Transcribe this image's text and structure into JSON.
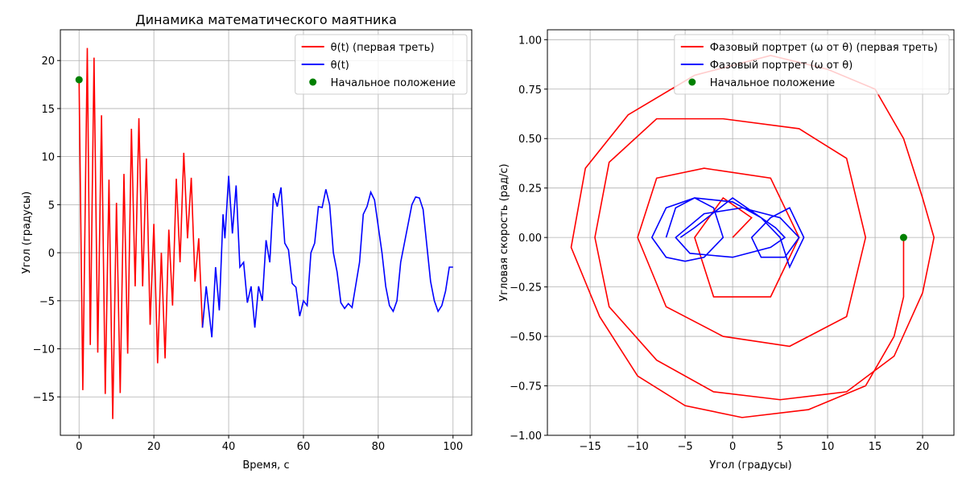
{
  "chart_data": [
    {
      "type": "line",
      "title": "Динамика математического маятника",
      "xlabel": "Время, с",
      "ylabel": "Угол (градусы)",
      "xlim": [
        -5,
        105
      ],
      "xticks": [
        0,
        20,
        40,
        60,
        80,
        100
      ],
      "ylim": [
        -19,
        23.2
      ],
      "yticks": [
        {
          "value": -15,
          "label": "−15"
        },
        {
          "value": -10,
          "label": "−10"
        },
        {
          "value": -5,
          "label": "−5"
        },
        0,
        5,
        10,
        15,
        20
      ],
      "grid": true,
      "legend": "upper right",
      "series": [
        {
          "name": "θ(t) (первая треть)",
          "color": "#ff0000",
          "type": "line",
          "x": [
            0,
            1,
            2.2,
            3,
            4,
            5,
            6,
            7,
            8,
            9,
            10,
            11,
            12,
            13,
            14,
            15,
            16,
            17,
            18,
            19,
            20,
            21,
            22,
            23,
            24,
            25,
            26,
            27,
            28,
            29,
            30,
            31,
            32,
            33
          ],
          "values": [
            18,
            -14.3,
            21.3,
            -9.6,
            20.3,
            -10.4,
            14.3,
            -14.7,
            7.6,
            -17.3,
            5.2,
            -14.6,
            8.2,
            -10.5,
            12.9,
            -3.5,
            14,
            -3.5,
            9.8,
            -7.5,
            3,
            -11.5,
            0,
            -11,
            2.4,
            -5.5,
            7.7,
            -1,
            10.4,
            1.5,
            7.8,
            -3,
            1.5,
            -7.8
          ]
        },
        {
          "name": "θ(t)",
          "color": "#0000ff",
          "type": "line",
          "x": [
            33,
            34,
            35.5,
            36.5,
            37.5,
            38.5,
            39,
            40,
            41,
            42,
            43,
            44,
            45,
            46,
            47,
            48,
            49,
            50,
            51,
            52,
            53,
            54,
            55,
            56,
            57,
            58,
            59,
            60,
            61,
            62,
            63,
            64,
            65,
            66,
            67,
            68,
            69,
            70,
            71,
            72,
            73,
            75,
            76,
            77,
            78,
            79,
            81,
            82,
            83,
            84,
            85,
            86,
            88,
            89,
            90,
            91,
            92,
            94,
            95,
            96,
            97,
            98,
            99,
            100
          ],
          "values": [
            -7.8,
            -3.5,
            -8.8,
            -1.5,
            -6,
            4,
            1.5,
            8,
            2,
            7,
            -1.5,
            -1,
            -5.2,
            -3.5,
            -7.8,
            -3.5,
            -5,
            1.3,
            -1,
            6.2,
            4.8,
            6.8,
            1,
            0.3,
            -3.2,
            -3.6,
            -6.6,
            -5,
            -5.5,
            0,
            1,
            4.8,
            4.7,
            6.6,
            5,
            0,
            -2,
            -5.2,
            -5.8,
            -5.3,
            -5.7,
            -1,
            4,
            4.8,
            6.3,
            5.5,
            0,
            -3.5,
            -5.5,
            -6.1,
            -5,
            -1,
            3,
            5,
            5.8,
            5.7,
            4.5,
            -3,
            -5,
            -6.1,
            -5.5,
            -4,
            -1.5,
            -1.5
          ]
        },
        {
          "name": "Начальное положение",
          "color": "#008000",
          "type": "scatter",
          "x": [
            0
          ],
          "values": [
            18
          ]
        }
      ]
    },
    {
      "type": "line",
      "xlabel": "Угол (градусы)",
      "ylabel": "Угловая скорость (рад/с)",
      "xlim": [
        -19.5,
        23.3
      ],
      "xticks": [
        {
          "value": -15,
          "label": "−15"
        },
        {
          "value": -10,
          "label": "−10"
        },
        {
          "value": -5,
          "label": "−5"
        },
        0,
        5,
        10,
        15,
        20
      ],
      "ylim": [
        -1.0,
        1.05
      ],
      "yticks": [
        {
          "value": -1,
          "label": "−1.00"
        },
        {
          "value": -0.75,
          "label": "−0.75"
        },
        {
          "value": -0.5,
          "label": "−0.50"
        },
        {
          "value": -0.25,
          "label": "−0.25"
        },
        {
          "value": 0,
          "label": "0.00"
        },
        0.25,
        {
          "value": 0.5,
          "label": "0.50"
        },
        0.75,
        {
          "value": 1,
          "label": "1.00"
        }
      ],
      "grid": true,
      "legend": "upper right",
      "series": [
        {
          "name": "Фазовый портрет (ω от θ) (первая треть)",
          "color": "#ff0000",
          "type": "line",
          "x": [
            18,
            18,
            17,
            14,
            8,
            1,
            -5,
            -10,
            -14,
            -17,
            -15.5,
            -11,
            -4,
            4,
            10,
            15,
            18,
            20,
            21.2,
            20,
            17,
            12,
            5,
            -2,
            -8,
            -13,
            -14.5,
            -13,
            -8,
            -1,
            7,
            12,
            14,
            12,
            6,
            -1,
            -7,
            -10,
            -8,
            -3,
            4,
            7,
            4,
            -2,
            -4,
            -1,
            2,
            0
          ],
          "values": [
            0,
            -0.3,
            -0.5,
            -0.75,
            -0.87,
            -0.91,
            -0.85,
            -0.7,
            -0.4,
            -0.05,
            0.35,
            0.62,
            0.82,
            0.92,
            0.85,
            0.75,
            0.5,
            0.2,
            0,
            -0.28,
            -0.6,
            -0.78,
            -0.82,
            -0.78,
            -0.62,
            -0.35,
            0,
            0.38,
            0.6,
            0.6,
            0.55,
            0.4,
            0,
            -0.4,
            -0.55,
            -0.5,
            -0.35,
            0,
            0.3,
            0.35,
            0.3,
            0,
            -0.3,
            -0.3,
            0,
            0.2,
            0.1,
            0
          ]
        },
        {
          "name": "Фазовый портрет (ω от θ)",
          "color": "#0000ff",
          "type": "line",
          "x": [
            -7,
            -6,
            -4,
            -2,
            -1,
            -3,
            -5,
            -7,
            -8.5,
            -7,
            -4,
            0,
            3,
            5,
            6,
            7.5,
            6,
            4,
            2,
            3,
            5.5,
            7,
            5,
            1,
            -3,
            -6,
            -4.5,
            0,
            4,
            5.5,
            4.5,
            0,
            -4,
            -5.5
          ],
          "values": [
            0,
            0.15,
            0.2,
            0.15,
            0,
            -0.1,
            -0.12,
            -0.1,
            0,
            0.15,
            0.2,
            0.18,
            0.1,
            0,
            -0.15,
            0,
            0.15,
            0.1,
            0,
            -0.1,
            -0.1,
            0,
            0.1,
            0.15,
            0.12,
            0,
            -0.08,
            -0.1,
            -0.05,
            0,
            0.05,
            0.2,
            0.05,
            0
          ]
        },
        {
          "name": "Начальное положение",
          "color": "#008000",
          "type": "scatter",
          "x": [
            18
          ],
          "values": [
            0
          ]
        }
      ]
    }
  ]
}
